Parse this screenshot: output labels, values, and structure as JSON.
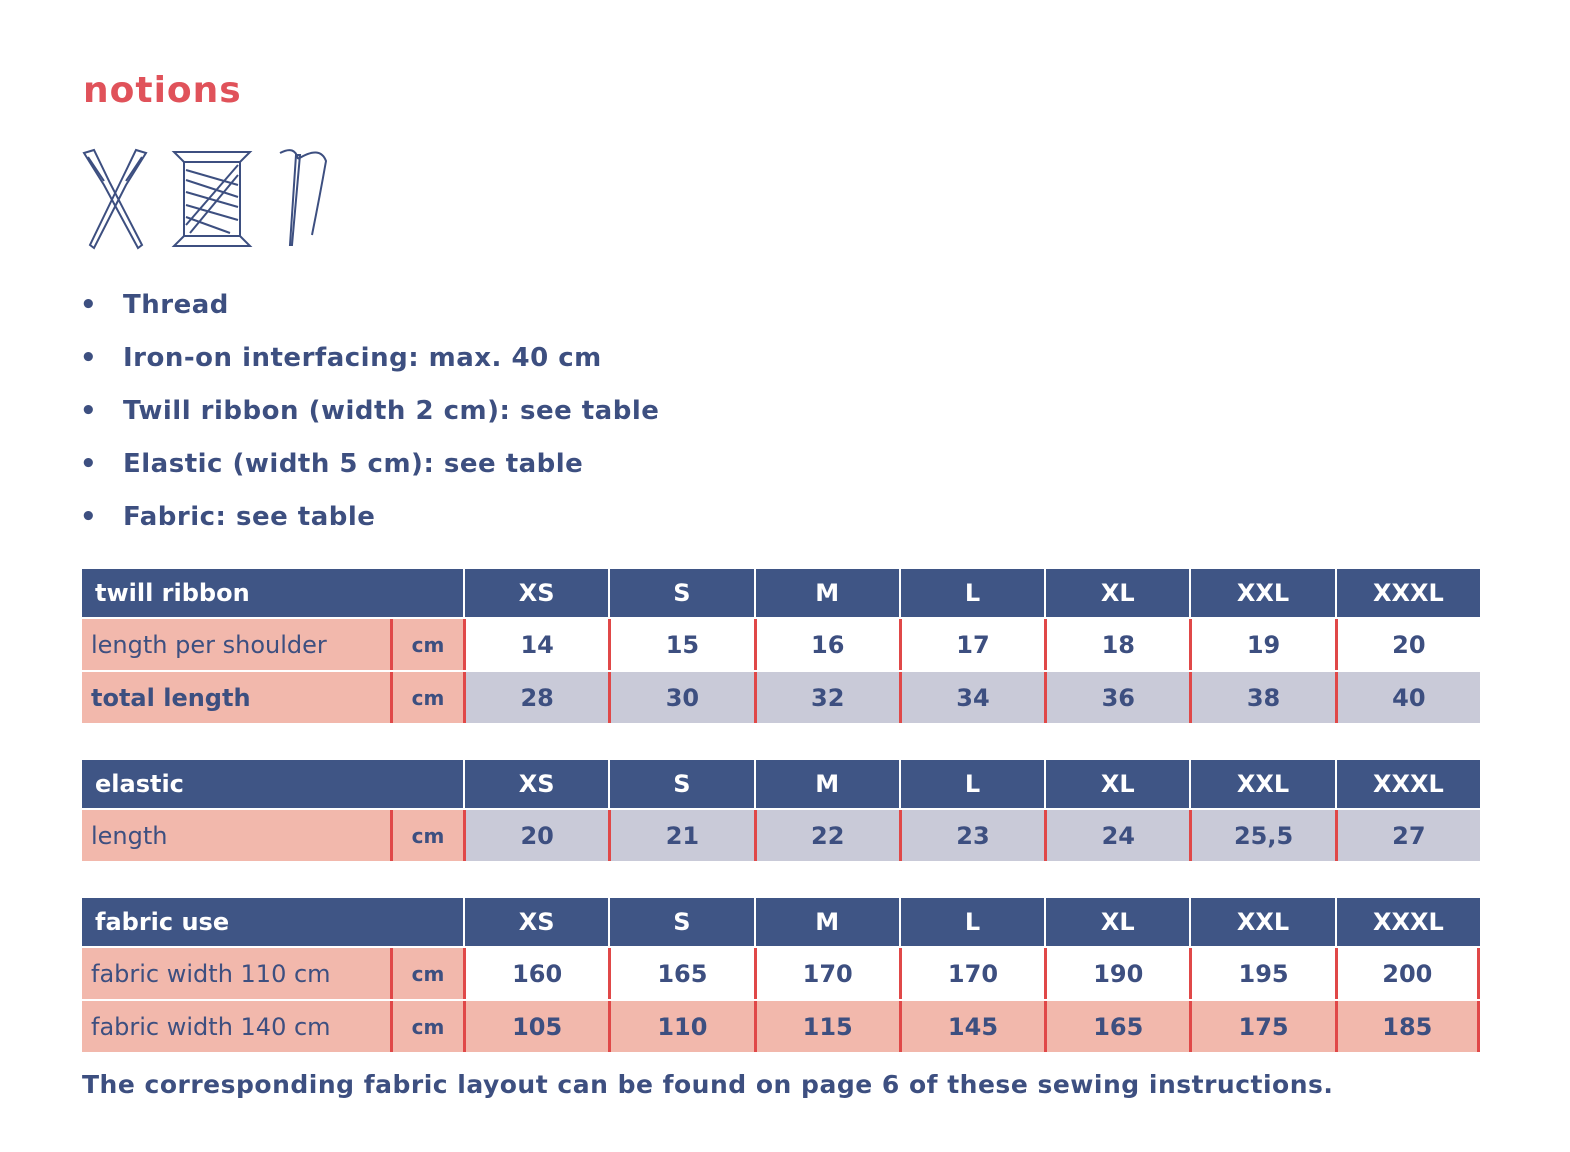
{
  "title": "notions",
  "bullets": [
    "Thread",
    "Iron-on interfacing: max. 40 cm",
    "Twill ribbon (width 2 cm): see table",
    "Elastic (width 5 cm): see table",
    "Fabric: see table"
  ],
  "tables": [
    {
      "header": "twill ribbon",
      "sizes": [
        "XS",
        "S",
        "M",
        "L",
        "XL",
        "XXL",
        "XXXL"
      ],
      "rows": [
        {
          "label": "length per shoulder",
          "unit": "cm",
          "values": [
            "14",
            "15",
            "16",
            "17",
            "18",
            "19",
            "20"
          ]
        },
        {
          "label": "total length",
          "unit": "cm",
          "values": [
            "28",
            "30",
            "32",
            "34",
            "36",
            "38",
            "40"
          ]
        }
      ]
    },
    {
      "header": "elastic",
      "sizes": [
        "XS",
        "S",
        "M",
        "L",
        "XL",
        "XXL",
        "XXXL"
      ],
      "rows": [
        {
          "label": "length",
          "unit": "cm",
          "values": [
            "20",
            "21",
            "22",
            "23",
            "24",
            "25,5",
            "27"
          ]
        }
      ]
    },
    {
      "header": "fabric use",
      "sizes": [
        "XS",
        "S",
        "M",
        "L",
        "XL",
        "XXL",
        "XXXL"
      ],
      "rows": [
        {
          "label": "fabric width 110 cm",
          "unit": "cm",
          "values": [
            "160",
            "165",
            "170",
            "170",
            "190",
            "195",
            "200"
          ]
        },
        {
          "label": "fabric width 140 cm",
          "unit": "cm",
          "values": [
            "105",
            "110",
            "115",
            "145",
            "165",
            "175",
            "185"
          ]
        }
      ]
    }
  ],
  "footer": "The corresponding fabric layout can be found on page 6 of these sewing instructions."
}
